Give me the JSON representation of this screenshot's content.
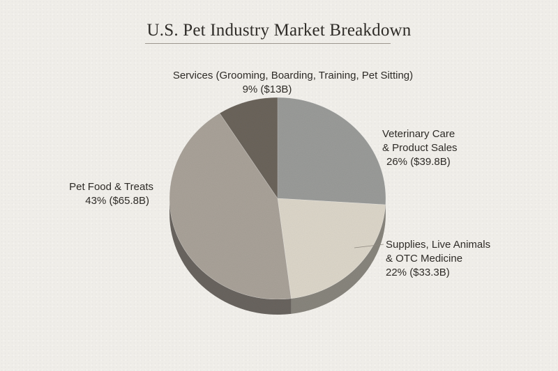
{
  "chart_data": {
    "type": "pie",
    "title": "U.S. Pet Industry Market Breakdown",
    "slices": [
      {
        "name_lines": [
          "Veterinary Care",
          "& Product Sales"
        ],
        "percent": 26,
        "value_label": "26% ($39.8B)",
        "value": 39.8,
        "color": "#9a9b99"
      },
      {
        "name_lines": [
          "Supplies, Live Animals",
          "& OTC Medicine"
        ],
        "percent": 22,
        "value_label": "22% ($33.3B)",
        "value": 33.3,
        "color": "#dcd6c9"
      },
      {
        "name_lines": [
          "Pet Food & Treats"
        ],
        "percent": 43,
        "value_label": "43% ($65.8B)",
        "value": 65.8,
        "color": "#a9a299"
      },
      {
        "name_lines": [
          "Services (Grooming, Boarding, Training, Pet Sitting)"
        ],
        "percent": 9,
        "value_label": "9% ($13B)",
        "value": 13,
        "color": "#6b645b"
      }
    ],
    "legend": "none"
  }
}
